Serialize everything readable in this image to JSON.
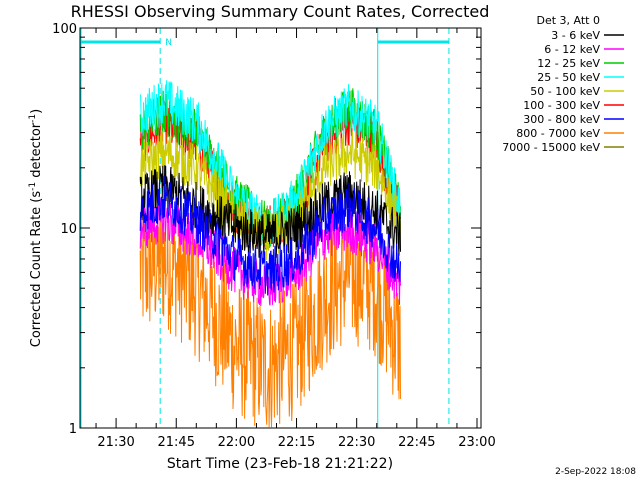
{
  "chart_data": {
    "type": "line",
    "title": "RHESSI Observing Summary Count Rates, Corrected",
    "xlabel": "Start Time (23-Feb-18 21:21:22)",
    "ylabel": "Corrected Count Rate (s",
    "ylabel_sup1": "-1",
    "ylabel_mid": " detector",
    "ylabel_sup2": "-1",
    "ylabel_end": ")",
    "yscale": "log",
    "ylim": [
      1,
      100
    ],
    "xlim": [
      "21:21",
      "23:01"
    ],
    "y_ticks": [
      "1",
      "10",
      "100"
    ],
    "x_ticks": [
      "21:30",
      "21:45",
      "22:00",
      "22:15",
      "22:30",
      "22:45",
      "23:00"
    ],
    "legend_header": "Det 3, Att 0",
    "legend_placement": "outside-right",
    "grid": false,
    "night_markers": {
      "label": "N",
      "dashed_times": [
        "21:41",
        "22:53"
      ],
      "solid_times": [
        "21:21",
        "22:35"
      ]
    },
    "series": [
      {
        "name": "3 - 6 keV",
        "color": "#000000",
        "values": [
          {
            "x": "21:36",
            "y": 14
          },
          {
            "x": "21:42",
            "y": 16
          },
          {
            "x": "21:50",
            "y": 13
          },
          {
            "x": "22:00",
            "y": 10
          },
          {
            "x": "22:08",
            "y": 9
          },
          {
            "x": "22:15",
            "y": 10
          },
          {
            "x": "22:22",
            "y": 13
          },
          {
            "x": "22:28",
            "y": 15
          },
          {
            "x": "22:35",
            "y": 12
          },
          {
            "x": "22:41",
            "y": 9
          }
        ]
      },
      {
        "name": "6 - 12 keV",
        "color": "#ff00ff",
        "values": [
          {
            "x": "21:36",
            "y": 10
          },
          {
            "x": "21:42",
            "y": 11
          },
          {
            "x": "21:50",
            "y": 9
          },
          {
            "x": "22:00",
            "y": 6
          },
          {
            "x": "22:08",
            "y": 5
          },
          {
            "x": "22:15",
            "y": 6
          },
          {
            "x": "22:22",
            "y": 9
          },
          {
            "x": "22:28",
            "y": 10
          },
          {
            "x": "22:35",
            "y": 8
          },
          {
            "x": "22:41",
            "y": 5
          }
        ]
      },
      {
        "name": "12 - 25 keV",
        "color": "#00cc00",
        "values": [
          {
            "x": "21:36",
            "y": 30
          },
          {
            "x": "21:42",
            "y": 38
          },
          {
            "x": "21:50",
            "y": 30
          },
          {
            "x": "22:00",
            "y": 14
          },
          {
            "x": "22:08",
            "y": 10
          },
          {
            "x": "22:15",
            "y": 14
          },
          {
            "x": "22:22",
            "y": 30
          },
          {
            "x": "22:28",
            "y": 40
          },
          {
            "x": "22:35",
            "y": 30
          },
          {
            "x": "22:41",
            "y": 12
          }
        ]
      },
      {
        "name": "25 - 50 keV",
        "color": "#00ffff",
        "values": [
          {
            "x": "21:36",
            "y": 36
          },
          {
            "x": "21:42",
            "y": 44
          },
          {
            "x": "21:50",
            "y": 34
          },
          {
            "x": "22:00",
            "y": 14
          },
          {
            "x": "22:08",
            "y": 10
          },
          {
            "x": "22:15",
            "y": 14
          },
          {
            "x": "22:22",
            "y": 32
          },
          {
            "x": "22:28",
            "y": 40
          },
          {
            "x": "22:35",
            "y": 32
          },
          {
            "x": "22:41",
            "y": 12
          }
        ]
      },
      {
        "name": "50 - 100 keV",
        "color": "#cccc00",
        "values": [
          {
            "x": "21:36",
            "y": 20
          },
          {
            "x": "21:42",
            "y": 24
          },
          {
            "x": "21:50",
            "y": 20
          },
          {
            "x": "22:00",
            "y": 11
          },
          {
            "x": "22:08",
            "y": 9
          },
          {
            "x": "22:15",
            "y": 11
          },
          {
            "x": "22:22",
            "y": 20
          },
          {
            "x": "22:28",
            "y": 24
          },
          {
            "x": "22:35",
            "y": 20
          },
          {
            "x": "22:41",
            "y": 10
          }
        ]
      },
      {
        "name": "100 - 300 keV",
        "color": "#ff0000",
        "values": [
          {
            "x": "21:36",
            "y": 27
          },
          {
            "x": "21:42",
            "y": 33
          },
          {
            "x": "21:50",
            "y": 27
          },
          {
            "x": "22:00",
            "y": 12
          },
          {
            "x": "22:08",
            "y": 10
          },
          {
            "x": "22:15",
            "y": 12
          },
          {
            "x": "22:22",
            "y": 27
          },
          {
            "x": "22:28",
            "y": 34
          },
          {
            "x": "22:35",
            "y": 27
          },
          {
            "x": "22:41",
            "y": 11
          }
        ]
      },
      {
        "name": "300 - 800 keV",
        "color": "#0000ff",
        "values": [
          {
            "x": "21:36",
            "y": 12
          },
          {
            "x": "21:42",
            "y": 14
          },
          {
            "x": "21:50",
            "y": 11
          },
          {
            "x": "22:00",
            "y": 7
          },
          {
            "x": "22:08",
            "y": 6
          },
          {
            "x": "22:15",
            "y": 7
          },
          {
            "x": "22:22",
            "y": 11
          },
          {
            "x": "22:28",
            "y": 13
          },
          {
            "x": "22:35",
            "y": 10
          },
          {
            "x": "22:41",
            "y": 6
          }
        ]
      },
      {
        "name": "800 - 7000 keV",
        "color": "#ff8000",
        "values": [
          {
            "x": "21:36",
            "y": 6
          },
          {
            "x": "21:42",
            "y": 7
          },
          {
            "x": "21:50",
            "y": 5
          },
          {
            "x": "22:00",
            "y": 2.5
          },
          {
            "x": "22:08",
            "y": 2
          },
          {
            "x": "22:15",
            "y": 2.5
          },
          {
            "x": "22:22",
            "y": 4.5
          },
          {
            "x": "22:28",
            "y": 6
          },
          {
            "x": "22:35",
            "y": 5
          },
          {
            "x": "22:41",
            "y": 2.5
          }
        ]
      },
      {
        "name": "7000 - 15000 keV",
        "color": "#808000",
        "values": []
      }
    ],
    "footer": "2-Sep-2022 18:08"
  }
}
